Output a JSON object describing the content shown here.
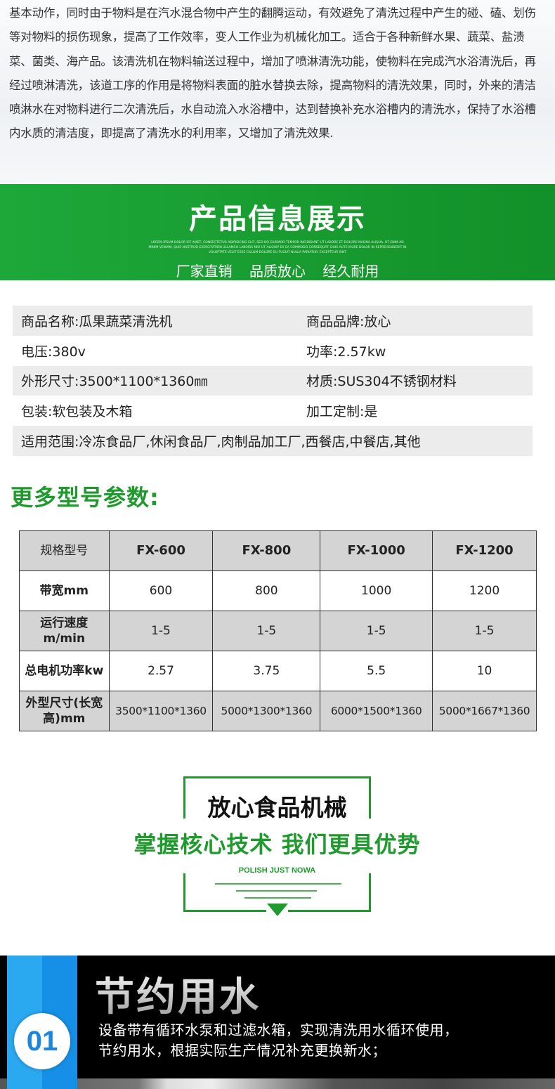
{
  "intro": {
    "text": "基本动作，同时由于物料是在汽水混合物中产生的翻腾运动，有效避免了清洗过程中产生的碰、磕、划伤等对物料的损伤现象，提高了工作效率，变人工作业为机械化加工。适合于各种新鲜水果、蔬菜、盐渍菜、菌类、海产品。该清洗机在物料输送过程中，增加了喷淋清洗功能，使物料在完成汽水浴清洗后，再经过喷淋清洗，该道工序的作用是将物料表面的脏水替换去除，提高物料的清洗效果，同时，外来的清洁喷淋水在对物料进行二次清洗后，水自动流入水浴槽中，达到替换补充水浴槽内的清洗水，保持了水浴槽内水质的清洁度，即提高了清洗水的利用率，又增加了清洗效果."
  },
  "banner": {
    "title": "产品信息展示",
    "lorem": "LOREM IPSUM DOLOR SIT AMET, CONSECTETUR ADIPISICING ELIT, SED DO EIUSMOD TEMPOR INCIDIDUNT UT LABORE ET DOLORE MAGNA ALIQUA. UT ENIM AD MINIM VENIAM, QUIS NOSTRUD EXERCITATION ULLAMCO LABORIS NISI UT ALIQUIP EX EA COMMODO CONSEQUAT. DUIS AUTE IRURE DOLOR IN REPREHENDERIT IN VOLUPTATE VELIT ESSE CILLUM DOLORE EU FUGIAT NULLA PARIATUR. EXCEPTEUR SINT",
    "slogans": [
      "厂家直销",
      "品质放心",
      "经久耐用"
    ]
  },
  "info": [
    [
      "商品名称:瓜果蔬菜清洗机",
      "商品品牌:放心"
    ],
    [
      "电压:380v",
      "功率:2.57kw"
    ],
    [
      "外形尺寸:3500*1100*1360㎜",
      "材质:SUS304不锈钢材料"
    ],
    [
      "包装:软包装及木箱",
      "加工定制:是"
    ],
    [
      "适用范围:冷冻食品厂,休闲食品厂,肉制品加工厂,西餐店,中餐店,其他"
    ]
  ],
  "more_title": "更多型号参数:",
  "specs": {
    "header": [
      "规格型号",
      "FX-600",
      "FX-800",
      "FX-1000",
      "FX-1200"
    ],
    "rows": [
      [
        "带宽mm",
        "600",
        "800",
        "1000",
        "1200"
      ],
      [
        "运行速度m/min",
        "1-5",
        "1-5",
        "1-5",
        "1-5"
      ],
      [
        "总电机功率kw",
        "2.57",
        "3.75",
        "5.5",
        "10"
      ],
      [
        "外型尺寸(长宽高)mm",
        "3500*1100*1360",
        "5000*1300*1360",
        "6000*1500*1360",
        "5000*1667*1360"
      ]
    ]
  },
  "badge": {
    "brand": "放心食品机械",
    "slogan": "掌握核心技术  我们更具优势",
    "english": "POLISH   JUST NOWA"
  },
  "feature": {
    "number": "01",
    "title": "节约用水",
    "lines": [
      "设备带有循环水泵和过滤水箱，实现清洗用水循环使用，",
      "节约用水，根据实际生产情况补充更换新水；"
    ]
  },
  "colors": {
    "green": "#1f9a2d",
    "blue": "#1a86e0",
    "gray_row": "#ececec"
  }
}
